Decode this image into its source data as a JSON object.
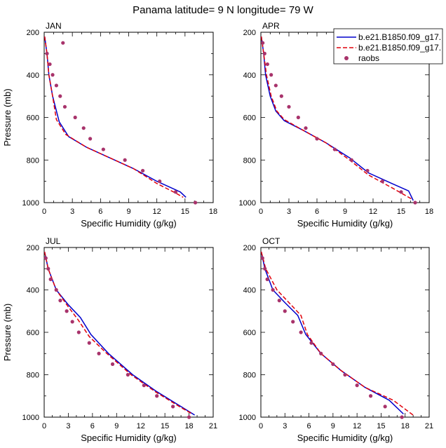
{
  "title": "Panama  latitude= 9 N longitude= 79 W",
  "legend": {
    "entries": [
      {
        "label": "b.e21.B1850.f09_g17.",
        "style": "solid",
        "color": "#0000cc"
      },
      {
        "label": "b.e21.B1850.f09_g17.",
        "style": "dashed",
        "color": "#e0000a"
      },
      {
        "label": "raobs",
        "style": "marker",
        "color": "#a8336b"
      }
    ]
  },
  "chart_data": [
    {
      "type": "line",
      "panel_label": "JAN",
      "xlabel": "Specific Humidity (g/kg)",
      "ylabel": "Pressure (mb)",
      "xlim": [
        0,
        18
      ],
      "ylim": [
        1000,
        200
      ],
      "y_reversed": true,
      "xticks": [
        "0",
        "3",
        "6",
        "9",
        "12",
        "15",
        "18"
      ],
      "yticks": [
        "200",
        "400",
        "600",
        "800",
        "1000"
      ],
      "series": [
        {
          "style": "solid",
          "color": "#0000cc",
          "points": [
            [
              0.05,
              220
            ],
            [
              0.3,
              300
            ],
            [
              0.5,
              400
            ],
            [
              0.9,
              500
            ],
            [
              1.6,
              620
            ],
            [
              2.6,
              690
            ],
            [
              4.5,
              740
            ],
            [
              7,
              790
            ],
            [
              9.5,
              840
            ],
            [
              12,
              900
            ],
            [
              14.5,
              950
            ],
            [
              15.1,
              975
            ]
          ]
        },
        {
          "style": "dashed",
          "color": "#e0000a",
          "points": [
            [
              0.05,
              220
            ],
            [
              0.3,
              300
            ],
            [
              0.5,
              400
            ],
            [
              0.9,
              500
            ],
            [
              1.3,
              610
            ],
            [
              2.3,
              680
            ],
            [
              4.5,
              740
            ],
            [
              7,
              790
            ],
            [
              9.5,
              840
            ],
            [
              12,
              910
            ],
            [
              14,
              955
            ],
            [
              14.8,
              975
            ]
          ]
        },
        {
          "style": "marker",
          "color": "#a8336b",
          "points": [
            [
              2,
              250
            ],
            [
              0.3,
              300
            ],
            [
              0.6,
              350
            ],
            [
              0.9,
              400
            ],
            [
              1.3,
              450
            ],
            [
              1.7,
              500
            ],
            [
              2.2,
              550
            ],
            [
              3.3,
              600
            ],
            [
              4.2,
              650
            ],
            [
              4.9,
              700
            ],
            [
              6.3,
              750
            ],
            [
              8.6,
              800
            ],
            [
              10.5,
              850
            ],
            [
              12.3,
              900
            ],
            [
              14,
              950
            ],
            [
              16.1,
              1000
            ]
          ]
        }
      ]
    },
    {
      "type": "line",
      "panel_label": "APR",
      "xlabel": "Specific Humidity (g/kg)",
      "ylabel": "",
      "xlim": [
        0,
        18
      ],
      "ylim": [
        1000,
        200
      ],
      "y_reversed": true,
      "xticks": [
        "0",
        "3",
        "6",
        "9",
        "12",
        "15",
        "18"
      ],
      "yticks": [
        "200",
        "400",
        "600",
        "800",
        "1000"
      ],
      "series": [
        {
          "style": "solid",
          "color": "#0000cc",
          "points": [
            [
              0.05,
              220
            ],
            [
              0.3,
              300
            ],
            [
              0.5,
              400
            ],
            [
              1,
              500
            ],
            [
              1.6,
              570
            ],
            [
              2.5,
              615
            ],
            [
              4.5,
              660
            ],
            [
              7,
              720
            ],
            [
              9.5,
              790
            ],
            [
              11.5,
              860
            ],
            [
              14,
              910
            ],
            [
              15.8,
              945
            ],
            [
              16.3,
              990
            ]
          ]
        },
        {
          "style": "dashed",
          "color": "#e0000a",
          "points": [
            [
              0.05,
              220
            ],
            [
              0.3,
              300
            ],
            [
              0.6,
              400
            ],
            [
              1.1,
              500
            ],
            [
              1.7,
              570
            ],
            [
              2.5,
              610
            ],
            [
              4.5,
              660
            ],
            [
              7,
              720
            ],
            [
              9.5,
              800
            ],
            [
              11.5,
              870
            ],
            [
              14,
              930
            ],
            [
              16.2,
              985
            ]
          ]
        },
        {
          "style": "marker",
          "color": "#a8336b",
          "points": [
            [
              0.2,
              250
            ],
            [
              0.4,
              300
            ],
            [
              0.7,
              350
            ],
            [
              1.1,
              400
            ],
            [
              1.6,
              450
            ],
            [
              2.2,
              500
            ],
            [
              3,
              550
            ],
            [
              4,
              600
            ],
            [
              4.8,
              650
            ],
            [
              6,
              700
            ],
            [
              7.9,
              750
            ],
            [
              9.7,
              800
            ],
            [
              11.4,
              850
            ],
            [
              13,
              900
            ],
            [
              15,
              950
            ],
            [
              16.5,
              1000
            ]
          ]
        }
      ]
    },
    {
      "type": "line",
      "panel_label": "JUL",
      "xlabel": "Specific Humidity (g/kg)",
      "ylabel": "Pressure (mb)",
      "xlim": [
        0,
        21
      ],
      "ylim": [
        1000,
        200
      ],
      "y_reversed": true,
      "xticks": [
        "0",
        "3",
        "6",
        "9",
        "12",
        "15",
        "18",
        "21"
      ],
      "yticks": [
        "200",
        "400",
        "600",
        "800",
        "1000"
      ],
      "series": [
        {
          "style": "solid",
          "color": "#0000cc",
          "points": [
            [
              0.05,
              220
            ],
            [
              0.5,
              300
            ],
            [
              1.5,
              400
            ],
            [
              3,
              470
            ],
            [
              4.5,
              530
            ],
            [
              5.8,
              610
            ],
            [
              8,
              700
            ],
            [
              11,
              800
            ],
            [
              14,
              880
            ],
            [
              17,
              950
            ],
            [
              18.7,
              990
            ]
          ]
        },
        {
          "style": "dashed",
          "color": "#e0000a",
          "points": [
            [
              0.05,
              220
            ],
            [
              0.5,
              300
            ],
            [
              1.5,
              400
            ],
            [
              3,
              480
            ],
            [
              4.2,
              540
            ],
            [
              5.6,
              620
            ],
            [
              7.8,
              700
            ],
            [
              10.8,
              800
            ],
            [
              13.8,
              880
            ],
            [
              16.8,
              950
            ],
            [
              18.4,
              985
            ]
          ]
        },
        {
          "style": "marker",
          "color": "#a8336b",
          "points": [
            [
              0.2,
              250
            ],
            [
              0.5,
              300
            ],
            [
              0.8,
              350
            ],
            [
              1.5,
              400
            ],
            [
              2,
              450
            ],
            [
              2.8,
              500
            ],
            [
              3.5,
              550
            ],
            [
              4.3,
              600
            ],
            [
              5.6,
              650
            ],
            [
              6.8,
              700
            ],
            [
              8.5,
              750
            ],
            [
              10.4,
              800
            ],
            [
              12.4,
              850
            ],
            [
              14,
              900
            ],
            [
              16,
              950
            ],
            [
              18,
              1000
            ]
          ]
        }
      ]
    },
    {
      "type": "line",
      "panel_label": "OCT",
      "xlabel": "Specific Humidity (g/kg)",
      "ylabel": "",
      "xlim": [
        0,
        21
      ],
      "ylim": [
        1000,
        200
      ],
      "y_reversed": true,
      "xticks": [
        "0",
        "3",
        "6",
        "9",
        "12",
        "15",
        "18",
        "21"
      ],
      "yticks": [
        "200",
        "400",
        "600",
        "800",
        "1000"
      ],
      "series": [
        {
          "style": "solid",
          "color": "#0000cc",
          "points": [
            [
              0.05,
              220
            ],
            [
              0.5,
              300
            ],
            [
              1.5,
              400
            ],
            [
              3,
              460
            ],
            [
              4.6,
              520
            ],
            [
              5.6,
              610
            ],
            [
              7.5,
              700
            ],
            [
              10,
              780
            ],
            [
              13,
              860
            ],
            [
              16,
              920
            ],
            [
              17.8,
              985
            ]
          ]
        },
        {
          "style": "dashed",
          "color": "#e0000a",
          "points": [
            [
              0.05,
              220
            ],
            [
              0.6,
              300
            ],
            [
              2,
              400
            ],
            [
              3.5,
              460
            ],
            [
              5,
              520
            ],
            [
              5.8,
              610
            ],
            [
              7.5,
              700
            ],
            [
              10,
              780
            ],
            [
              13,
              860
            ],
            [
              16.5,
              920
            ],
            [
              19,
              990
            ]
          ]
        },
        {
          "style": "marker",
          "color": "#a8336b",
          "points": [
            [
              0.2,
              250
            ],
            [
              0.5,
              300
            ],
            [
              0.8,
              350
            ],
            [
              1.5,
              400
            ],
            [
              2.3,
              450
            ],
            [
              3,
              500
            ],
            [
              4,
              550
            ],
            [
              5,
              600
            ],
            [
              6.3,
              650
            ],
            [
              7.5,
              700
            ],
            [
              9,
              750
            ],
            [
              10.5,
              800
            ],
            [
              12,
              850
            ],
            [
              13.7,
              900
            ],
            [
              15.5,
              950
            ],
            [
              17.6,
              1000
            ]
          ]
        }
      ]
    }
  ]
}
